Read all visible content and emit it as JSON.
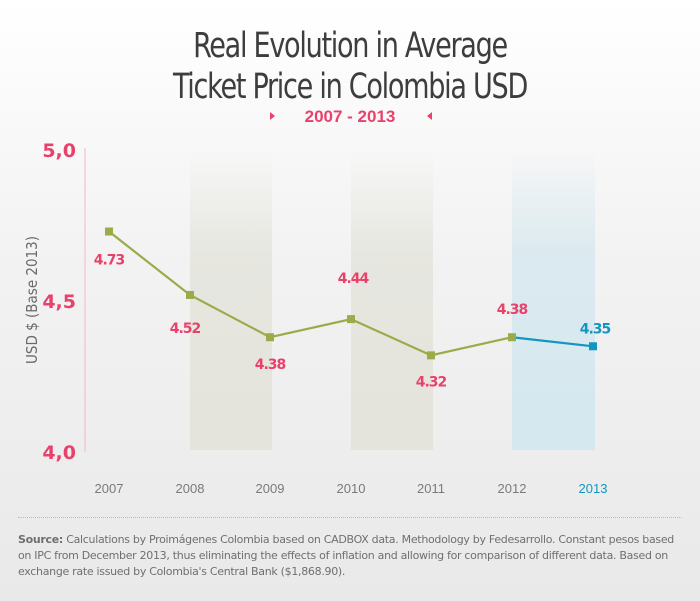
{
  "header": {
    "title_line1": "Real Evolution in Average",
    "title_line2": "Ticket Price in Colombia USD",
    "period": "2007 - 2013"
  },
  "colors": {
    "accent_pink": "#e9416a",
    "line_green": "#9aab49",
    "line_blue": "#1196c2",
    "band_gray": "#e4e4dc",
    "band_blue": "#d5e8ef",
    "year_gray": "#7a7a7a"
  },
  "chart_data": {
    "type": "line",
    "title": "Real Evolution in Average Ticket Price in Colombia USD",
    "subtitle": "2007 - 2013",
    "xlabel": "",
    "ylabel": "USD $ (Base 2013)",
    "ylim": [
      4.0,
      5.0
    ],
    "yticks": [
      "4,0",
      "4,5",
      "5,0"
    ],
    "ytick_values": [
      4.0,
      4.5,
      5.0
    ],
    "categories": [
      "2007",
      "2008",
      "2009",
      "2010",
      "2011",
      "2012",
      "2013"
    ],
    "values": [
      4.73,
      4.52,
      4.38,
      4.44,
      4.32,
      4.38,
      4.35
    ],
    "labels": [
      "4.73",
      "4.52",
      "4.38",
      "4.44",
      "4.32",
      "4.38",
      "4.35"
    ],
    "highlight_category": "2013",
    "shaded_bands": [
      [
        "2008",
        "2009"
      ],
      [
        "2010",
        "2011"
      ],
      [
        "2012",
        "2013"
      ]
    ],
    "grid": false,
    "legend": "none"
  },
  "footer": {
    "source_label": "Source:",
    "source_text": " Calculations by Proimágenes Colombia based on CADBOX data. Methodology by Fedesarrollo. Constant pesos based on IPC from December 2013, thus eliminating the effects of inflation and allowing for comparison of different data. Based on exchange rate issued by Colombia's Central Bank ($1,868.90)."
  }
}
